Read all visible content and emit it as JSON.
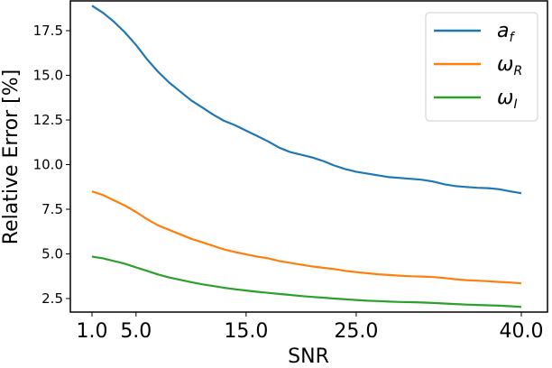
{
  "chart_data": {
    "type": "line",
    "title": "",
    "xlabel": "SNR",
    "ylabel": "Relative Error [%]",
    "xlim": [
      -1.0,
      42.4
    ],
    "ylim": [
      1.2,
      19.3
    ],
    "xticks": [
      1.0,
      5.0,
      15.0,
      25.0,
      40.0
    ],
    "xtick_labels": [
      "1.0",
      "5.0",
      "15.0",
      "25.0",
      "40.0"
    ],
    "yticks": [
      2.5,
      5.0,
      7.5,
      10.0,
      12.5,
      15.0,
      17.5
    ],
    "ytick_labels": [
      "2.5",
      "5.0",
      "7.5",
      "10.0",
      "12.5",
      "15.0",
      "17.5"
    ],
    "grid": false,
    "legend_position": "upper right",
    "x": [
      1,
      2,
      3,
      4,
      5,
      6,
      7,
      8,
      9,
      10,
      11,
      12,
      13,
      14,
      15,
      16,
      17,
      18,
      19,
      20,
      21,
      22,
      23,
      24,
      25,
      26,
      27,
      28,
      29,
      30,
      31,
      32,
      33,
      34,
      35,
      36,
      37,
      38,
      39,
      40
    ],
    "series": [
      {
        "name": "a_f",
        "label_main": "a",
        "label_sub": "f",
        "color": "#1f77b4",
        "values": [
          18.9,
          18.5,
          18.0,
          17.4,
          16.7,
          15.9,
          15.2,
          14.6,
          14.1,
          13.6,
          13.2,
          12.8,
          12.45,
          12.2,
          11.9,
          11.6,
          11.3,
          10.95,
          10.7,
          10.55,
          10.4,
          10.2,
          9.95,
          9.75,
          9.6,
          9.5,
          9.4,
          9.3,
          9.25,
          9.2,
          9.15,
          9.05,
          8.9,
          8.8,
          8.75,
          8.7,
          8.68,
          8.62,
          8.5,
          8.4
        ]
      },
      {
        "name": "omega_R",
        "label_main": "ω",
        "label_sub": "R",
        "color": "#ff7f0e",
        "values": [
          8.5,
          8.3,
          8.0,
          7.7,
          7.35,
          6.95,
          6.6,
          6.35,
          6.1,
          5.85,
          5.65,
          5.45,
          5.25,
          5.1,
          4.97,
          4.85,
          4.75,
          4.6,
          4.5,
          4.4,
          4.3,
          4.22,
          4.15,
          4.05,
          3.98,
          3.92,
          3.86,
          3.82,
          3.78,
          3.75,
          3.73,
          3.7,
          3.65,
          3.58,
          3.53,
          3.5,
          3.47,
          3.43,
          3.4,
          3.35
        ]
      },
      {
        "name": "omega_I",
        "label_main": "ω",
        "label_sub": "I",
        "color": "#2ca02c",
        "values": [
          4.85,
          4.75,
          4.6,
          4.45,
          4.25,
          4.05,
          3.85,
          3.68,
          3.55,
          3.42,
          3.3,
          3.2,
          3.1,
          3.02,
          2.95,
          2.88,
          2.82,
          2.76,
          2.7,
          2.64,
          2.59,
          2.55,
          2.5,
          2.46,
          2.42,
          2.38,
          2.36,
          2.33,
          2.31,
          2.3,
          2.28,
          2.25,
          2.22,
          2.19,
          2.16,
          2.14,
          2.12,
          2.1,
          2.07,
          2.03
        ]
      }
    ]
  },
  "legend": {
    "items": [
      {
        "main": "a",
        "sub": "f",
        "color": "#1f77b4"
      },
      {
        "main": "ω",
        "sub": "R",
        "color": "#ff7f0e"
      },
      {
        "main": "ω",
        "sub": "I",
        "color": "#2ca02c"
      }
    ]
  },
  "axes": {
    "xlabel": "SNR",
    "ylabel": "Relative Error [%]"
  }
}
